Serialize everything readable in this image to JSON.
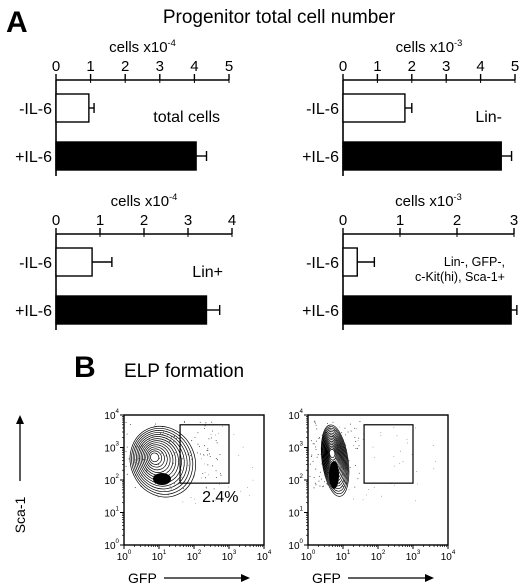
{
  "panel_a": {
    "letter": "A",
    "title": "Progenitor total cell number"
  },
  "panel_b": {
    "letter": "B",
    "title": "ELP formation"
  },
  "chart_data": [
    {
      "type": "bar",
      "orientation": "horizontal",
      "xlabel": "cells x10⁻⁴",
      "xlabel_base": "cells x10",
      "xlabel_exp": "-4",
      "ticks": [
        0,
        1,
        2,
        3,
        4,
        5
      ],
      "xlim": [
        0,
        5
      ],
      "categories": [
        "-IL-6",
        "+IL-6"
      ],
      "values": [
        0.95,
        4.05
      ],
      "errors": [
        0.15,
        0.3
      ],
      "fills": [
        "#ffffff",
        "#000000"
      ],
      "annotation": "total cells"
    },
    {
      "type": "bar",
      "orientation": "horizontal",
      "xlabel": "cells x10⁻³",
      "xlabel_base": "cells x10",
      "xlabel_exp": "-3",
      "ticks": [
        0,
        1,
        2,
        3,
        4,
        5
      ],
      "xlim": [
        0,
        5
      ],
      "categories": [
        "-IL-6",
        "+IL-6"
      ],
      "values": [
        1.8,
        4.6
      ],
      "errors": [
        0.2,
        0.3
      ],
      "fills": [
        "#ffffff",
        "#000000"
      ],
      "annotation": "Lin-"
    },
    {
      "type": "bar",
      "orientation": "horizontal",
      "xlabel": "cells x10⁻⁴",
      "xlabel_base": "cells x10",
      "xlabel_exp": "-4",
      "ticks": [
        0,
        1,
        2,
        3,
        4
      ],
      "xlim": [
        0,
        4
      ],
      "categories": [
        "-IL-6",
        "+IL-6"
      ],
      "values": [
        0.82,
        3.42
      ],
      "errors": [
        0.45,
        0.3
      ],
      "fills": [
        "#ffffff",
        "#000000"
      ],
      "annotation": "Lin+"
    },
    {
      "type": "bar",
      "orientation": "horizontal",
      "xlabel": "cells x10⁻³",
      "xlabel_base": "cells x10",
      "xlabel_exp": "-3",
      "ticks": [
        0,
        1,
        2,
        3
      ],
      "xlim": [
        0,
        3
      ],
      "categories": [
        "-IL-6",
        "+IL-6"
      ],
      "values": [
        0.25,
        2.95
      ],
      "errors": [
        0.3,
        0.1
      ],
      "fills": [
        "#ffffff",
        "#000000"
      ],
      "annotation_lines": [
        "Lin-, GFP-,",
        "c-Kit(hi), Sca-1+"
      ]
    },
    {
      "type": "scatter",
      "subtype": "flow-cytometry-contour",
      "xlabel": "GFP",
      "ylabel": "Sca-1",
      "x_scale": "log",
      "y_scale": "log",
      "xlim": [
        1,
        10000
      ],
      "ylim": [
        1,
        10000
      ],
      "tick_labels": [
        "10⁰",
        "10¹",
        "10²",
        "10³",
        "10⁴"
      ],
      "tick_exps": [
        "0",
        "1",
        "2",
        "3",
        "4"
      ],
      "gate": {
        "x": [
          40,
          1000
        ],
        "y": [
          80,
          5000
        ]
      },
      "gate_label": "2.4%"
    },
    {
      "type": "scatter",
      "subtype": "flow-cytometry-contour",
      "xlabel": "GFP",
      "x_scale": "log",
      "y_scale": "log",
      "xlim": [
        1,
        10000
      ],
      "ylim": [
        1,
        10000
      ],
      "tick_labels": [
        "10⁰",
        "10¹",
        "10²",
        "10³",
        "10⁴"
      ],
      "tick_exps": [
        "0",
        "1",
        "2",
        "3",
        "4"
      ],
      "gate": {
        "x": [
          40,
          1000
        ],
        "y": [
          80,
          5000
        ]
      }
    }
  ]
}
